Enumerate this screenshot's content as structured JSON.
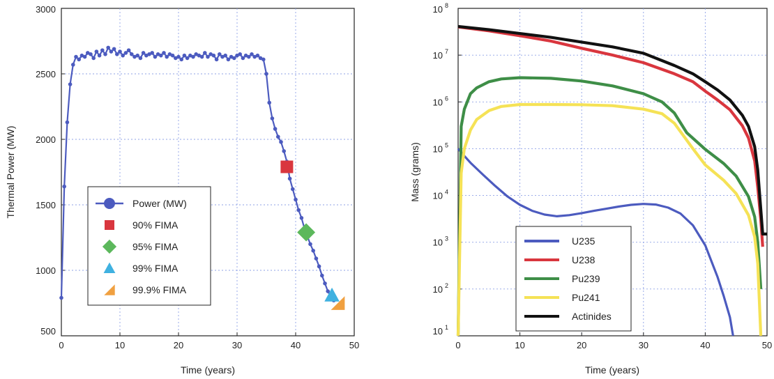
{
  "chart_data": [
    {
      "type": "line",
      "xlabel": "Time (years)",
      "ylabel": "Thermal Power (MW)",
      "xlim": [
        0,
        50
      ],
      "ylim": [
        500,
        3000
      ],
      "x_ticks": [
        "0",
        "10",
        "20",
        "30",
        "40",
        "50"
      ],
      "y_ticks": [
        "500",
        "1000",
        "1500",
        "2000",
        "2500",
        "3000"
      ],
      "grid": true,
      "legend_position": "lower-left",
      "series": [
        {
          "name": "Power (MW)",
          "color": "#4c5bbf",
          "marker": "circle",
          "x": [
            0,
            0.5,
            1,
            1.5,
            2,
            2.5,
            3,
            3.5,
            4,
            4.5,
            5,
            5.5,
            6,
            6.5,
            7,
            7.5,
            8,
            8.5,
            9,
            9.5,
            10,
            10.5,
            11,
            11.5,
            12,
            12.5,
            13,
            13.5,
            14,
            14.5,
            15,
            15.5,
            16,
            16.5,
            17,
            17.5,
            18,
            18.5,
            19,
            19.5,
            20,
            20.5,
            21,
            21.5,
            22,
            22.5,
            23,
            23.5,
            24,
            24.5,
            25,
            25.5,
            26,
            26.5,
            27,
            27.5,
            28,
            28.5,
            29,
            29.5,
            30,
            30.5,
            31,
            31.5,
            32,
            32.5,
            33,
            33.5,
            34,
            34.5,
            35,
            35.5,
            36,
            36.5,
            37,
            37.5,
            38,
            38.5,
            39,
            39.5,
            40,
            40.5,
            41,
            41.5,
            42,
            42.5,
            43,
            43.5,
            44,
            44.5,
            45,
            45.5,
            46,
            46.5
          ],
          "y": [
            790,
            1640,
            2130,
            2420,
            2570,
            2630,
            2610,
            2640,
            2630,
            2660,
            2650,
            2620,
            2670,
            2640,
            2680,
            2650,
            2700,
            2670,
            2690,
            2650,
            2670,
            2640,
            2660,
            2680,
            2650,
            2630,
            2640,
            2620,
            2660,
            2640,
            2650,
            2660,
            2630,
            2650,
            2640,
            2660,
            2630,
            2650,
            2640,
            2620,
            2630,
            2610,
            2640,
            2620,
            2640,
            2630,
            2650,
            2640,
            2630,
            2660,
            2630,
            2650,
            2640,
            2610,
            2650,
            2630,
            2640,
            2610,
            2630,
            2620,
            2640,
            2650,
            2620,
            2640,
            2630,
            2650,
            2630,
            2640,
            2620,
            2610,
            2500,
            2280,
            2160,
            2080,
            2020,
            1980,
            1910,
            1830,
            1700,
            1620,
            1540,
            1460,
            1400,
            1320,
            1260,
            1200,
            1150,
            1090,
            1030,
            960,
            900,
            840,
            800,
            770
          ]
        }
      ],
      "markers": [
        {
          "name": "90% FIMA",
          "shape": "square",
          "color": "#d9363e",
          "x": 38.5,
          "y": 1790
        },
        {
          "name": "95% FIMA",
          "shape": "diamond",
          "color": "#5cb85c",
          "x": 41.8,
          "y": 1290
        },
        {
          "name": "99% FIMA",
          "shape": "triangle-up",
          "color": "#3fb1e0",
          "x": 46.2,
          "y": 810
        },
        {
          "name": "99.9% FIMA",
          "shape": "triangle-corner",
          "color": "#f0a040",
          "x": 47.2,
          "y": 750
        }
      ]
    },
    {
      "type": "line",
      "xlabel": "Time (years)",
      "ylabel": "Mass (grams)",
      "xlim": [
        0,
        50
      ],
      "ylim": [
        10,
        100000000
      ],
      "yscale": "log",
      "x_ticks": [
        "0",
        "10",
        "20",
        "30",
        "40",
        "50"
      ],
      "y_ticks": [
        {
          "base": "10",
          "exp": "1"
        },
        {
          "base": "10",
          "exp": "2"
        },
        {
          "base": "10",
          "exp": "3"
        },
        {
          "base": "10",
          "exp": "4"
        },
        {
          "base": "10",
          "exp": "5"
        },
        {
          "base": "10",
          "exp": "6"
        },
        {
          "base": "10",
          "exp": "7"
        },
        {
          "base": "10",
          "exp": "8"
        }
      ],
      "grid": true,
      "legend_position": "lower-center",
      "series": [
        {
          "name": "U235",
          "color": "#4c5bbf",
          "x": [
            0,
            1,
            2,
            4,
            6,
            8,
            10,
            12,
            14,
            16,
            18,
            20,
            22,
            24,
            26,
            28,
            30,
            32,
            34,
            36,
            38,
            40,
            42,
            43,
            44,
            44.5
          ],
          "y": [
            100000,
            70000,
            50000,
            28000,
            16000,
            9500,
            6300,
            4700,
            3900,
            3600,
            3800,
            4200,
            4700,
            5200,
            5800,
            6300,
            6600,
            6400,
            5500,
            4100,
            2300,
            860,
            180,
            70,
            25,
            10
          ]
        },
        {
          "name": "U238",
          "color": "#d9363e",
          "x": [
            0,
            5,
            10,
            15,
            20,
            25,
            30,
            35,
            38,
            40,
            42,
            44,
            46,
            47,
            48,
            48.5,
            49,
            49.3
          ],
          "y": [
            40000000,
            33000000,
            26000000,
            20000000,
            14000000,
            10000000,
            6900000,
            4000000,
            2700000,
            1700000,
            1100000,
            680000,
            310000,
            170000,
            55000,
            15000,
            3000,
            800
          ]
        },
        {
          "name": "Pu239",
          "color": "#3e8e47",
          "x": [
            0,
            0.5,
            1,
            2,
            3,
            5,
            7,
            10,
            15,
            20,
            25,
            30,
            33,
            35,
            37,
            40,
            43,
            45,
            47,
            48,
            48.5,
            49
          ],
          "y": [
            10,
            300000,
            700000,
            1500000,
            2000000,
            2700000,
            3100000,
            3300000,
            3200000,
            2800000,
            2200000,
            1500000,
            1000000,
            580000,
            220000,
            97000,
            48000,
            26000,
            9500,
            3500,
            1000,
            100
          ]
        },
        {
          "name": "Pu241",
          "color": "#f5e256",
          "x": [
            0,
            0.5,
            1,
            2,
            3,
            5,
            7,
            10,
            15,
            20,
            25,
            30,
            33,
            35,
            38,
            40,
            43,
            45,
            47,
            48,
            48.5,
            49
          ],
          "y": [
            10,
            30000,
            100000,
            250000,
            420000,
            650000,
            800000,
            880000,
            880000,
            870000,
            830000,
            700000,
            560000,
            350000,
            100000,
            45000,
            21000,
            11000,
            3800,
            1300,
            350,
            10
          ]
        },
        {
          "name": "Actinides",
          "color": "#111111",
          "x": [
            0,
            5,
            10,
            15,
            20,
            25,
            30,
            35,
            38,
            40,
            42,
            44,
            46,
            47,
            48,
            48.5,
            49,
            49.3,
            50
          ],
          "y": [
            41000000,
            35000000,
            29000000,
            24000000,
            19000000,
            15000000,
            11000000,
            6000000,
            4000000,
            2700000,
            1800000,
            1100000,
            520000,
            300000,
            110000,
            35000,
            5000,
            1500,
            1500
          ]
        }
      ]
    }
  ]
}
